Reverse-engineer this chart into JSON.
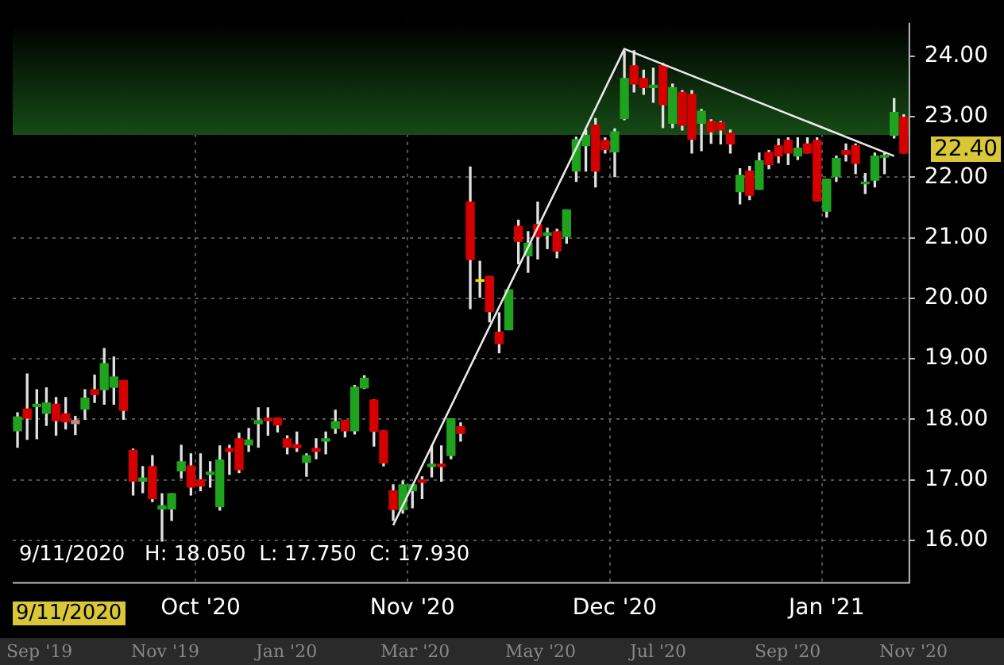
{
  "chart_data": {
    "type": "candlestick",
    "categories": [
      null,
      null,
      null,
      null,
      null,
      null,
      null,
      null,
      null,
      null,
      null,
      null,
      null,
      null,
      null,
      null,
      null,
      null,
      null,
      "Oct '20",
      null,
      null,
      null,
      null,
      null,
      null,
      null,
      null,
      null,
      null,
      null,
      null,
      null,
      null,
      null,
      null,
      null,
      null,
      null,
      null,
      null,
      "Nov '20",
      null,
      null,
      null,
      null,
      null,
      null,
      null,
      null,
      null,
      null,
      null,
      null,
      null,
      null,
      null,
      null,
      null,
      null,
      null,
      null,
      "Dec '20",
      null,
      null,
      null,
      null,
      null,
      null,
      null,
      null,
      null,
      null,
      null,
      null,
      null,
      null,
      null,
      null,
      null,
      null,
      null,
      null,
      null,
      "Jan '21",
      null,
      null,
      null,
      null,
      null,
      null,
      null,
      null
    ],
    "ohlc": [
      [
        17.81,
        18.11,
        17.54,
        18.04
      ],
      [
        18.17,
        18.75,
        17.67,
        18.02
      ],
      [
        18.21,
        18.49,
        17.68,
        18.25
      ],
      [
        18.1,
        18.52,
        17.9,
        18.27
      ],
      [
        18.25,
        18.36,
        17.74,
        17.98
      ],
      [
        18.09,
        18.36,
        17.84,
        17.96
      ],
      [
        17.98,
        18.05,
        17.75,
        17.93
      ],
      [
        18.17,
        18.49,
        18.0,
        18.35
      ],
      [
        18.49,
        18.73,
        18.28,
        18.41
      ],
      [
        18.49,
        19.17,
        18.25,
        18.92
      ],
      [
        18.53,
        19.03,
        18.25,
        18.7
      ],
      [
        18.64,
        18.64,
        18.0,
        18.15
      ],
      [
        17.49,
        17.51,
        16.75,
        16.98
      ],
      [
        16.98,
        17.22,
        16.79,
        17.03
      ],
      [
        17.22,
        17.4,
        16.64,
        16.69
      ],
      [
        16.52,
        16.77,
        15.99,
        16.57
      ],
      [
        16.52,
        16.77,
        16.33,
        16.77
      ],
      [
        17.15,
        17.57,
        17.03,
        17.3
      ],
      [
        17.23,
        17.43,
        16.75,
        16.88
      ],
      [
        17.0,
        17.43,
        16.82,
        16.9
      ],
      [
        17.09,
        17.3,
        16.88,
        17.13
      ],
      [
        16.56,
        17.56,
        16.5,
        17.33
      ],
      [
        17.52,
        17.57,
        17.09,
        17.47
      ],
      [
        17.68,
        17.77,
        17.12,
        17.17
      ],
      [
        17.58,
        17.85,
        17.47,
        17.66
      ],
      [
        17.93,
        18.19,
        17.54,
        17.98
      ],
      [
        18.02,
        18.19,
        17.74,
        17.98
      ],
      [
        18.02,
        18.02,
        17.79,
        17.91
      ],
      [
        17.68,
        17.73,
        17.43,
        17.54
      ],
      [
        17.58,
        17.79,
        17.47,
        17.53
      ],
      [
        17.29,
        17.43,
        17.06,
        17.4
      ],
      [
        17.52,
        17.68,
        17.35,
        17.47
      ],
      [
        17.64,
        17.79,
        17.43,
        17.68
      ],
      [
        17.85,
        18.15,
        17.77,
        17.96
      ],
      [
        17.98,
        17.98,
        17.71,
        17.81
      ],
      [
        17.81,
        18.56,
        17.76,
        18.53
      ],
      [
        18.52,
        18.72,
        18.51,
        18.68
      ],
      [
        18.32,
        18.32,
        17.56,
        17.8
      ],
      [
        17.81,
        17.81,
        17.23,
        17.28
      ],
      [
        16.82,
        16.92,
        16.33,
        16.51
      ],
      [
        16.51,
        16.98,
        16.45,
        16.92
      ],
      [
        16.82,
        16.92,
        16.54,
        16.92
      ],
      [
        17.0,
        17.05,
        16.69,
        16.96
      ],
      [
        17.22,
        17.56,
        17.05,
        17.26
      ],
      [
        17.26,
        17.56,
        16.98,
        17.22
      ],
      [
        17.4,
        18.01,
        17.35,
        18.01
      ],
      [
        17.88,
        17.94,
        17.64,
        17.77
      ],
      [
        21.59,
        22.17,
        19.83,
        20.64
      ],
      [
        20.3,
        20.61,
        20.02,
        20.28
      ],
      [
        20.36,
        20.36,
        19.61,
        19.78
      ],
      [
        19.44,
        19.76,
        19.1,
        19.25
      ],
      [
        19.48,
        20.14,
        19.48,
        20.14
      ],
      [
        21.19,
        21.29,
        20.57,
        20.94
      ],
      [
        20.7,
        21.1,
        20.43,
        20.91
      ],
      [
        21.22,
        21.59,
        20.65,
        21.02
      ],
      [
        21.04,
        21.16,
        20.82,
        21.08
      ],
      [
        21.1,
        21.14,
        20.67,
        20.78
      ],
      [
        21.02,
        21.46,
        20.91,
        21.46
      ],
      [
        22.1,
        22.66,
        21.93,
        22.62
      ],
      [
        22.52,
        22.78,
        22.1,
        22.69
      ],
      [
        22.86,
        22.97,
        21.84,
        22.1
      ],
      [
        22.61,
        22.65,
        22.4,
        22.46
      ],
      [
        22.42,
        22.8,
        22.01,
        22.75
      ],
      [
        22.97,
        24.08,
        22.95,
        23.63
      ],
      [
        23.84,
        24.09,
        23.41,
        23.54
      ],
      [
        23.63,
        23.77,
        23.37,
        23.48
      ],
      [
        23.48,
        23.8,
        23.24,
        23.52
      ],
      [
        23.84,
        23.88,
        22.82,
        23.2
      ],
      [
        22.89,
        23.54,
        22.82,
        23.48
      ],
      [
        23.4,
        23.43,
        22.78,
        22.86
      ],
      [
        23.37,
        23.43,
        22.4,
        22.63
      ],
      [
        22.89,
        23.12,
        22.44,
        23.09
      ],
      [
        22.92,
        22.95,
        22.56,
        22.75
      ],
      [
        22.9,
        22.92,
        22.55,
        22.78
      ],
      [
        22.73,
        22.78,
        22.4,
        22.55
      ],
      [
        21.76,
        22.14,
        21.56,
        22.03
      ],
      [
        22.1,
        22.18,
        21.63,
        21.7
      ],
      [
        21.8,
        22.4,
        21.8,
        22.27
      ],
      [
        22.41,
        22.44,
        22.14,
        22.21
      ],
      [
        22.52,
        22.63,
        22.24,
        22.35
      ],
      [
        22.61,
        22.65,
        22.21,
        22.4
      ],
      [
        22.35,
        22.65,
        22.29,
        22.48
      ],
      [
        22.55,
        22.65,
        22.4,
        22.4
      ],
      [
        22.61,
        22.65,
        21.61,
        21.61
      ],
      [
        21.44,
        21.97,
        21.34,
        21.97
      ],
      [
        22.01,
        22.35,
        21.93,
        22.31
      ],
      [
        22.44,
        22.55,
        22.27,
        22.38
      ],
      [
        22.52,
        22.55,
        22.06,
        22.23
      ],
      [
        21.89,
        22.06,
        21.73,
        21.92
      ],
      [
        21.95,
        22.4,
        21.84,
        22.35
      ],
      [
        22.33,
        22.4,
        22.06,
        22.36
      ],
      [
        22.69,
        23.3,
        22.65,
        23.07
      ],
      [
        22.99,
        23.03,
        22.4,
        22.4
      ]
    ],
    "colors": [
      "#1fa31f",
      "#d40000",
      "#1fa31f",
      "#1fa31f",
      "#d40000",
      "#d40000",
      "#c98080",
      "#1fa31f",
      "#d40000",
      "#1fa31f",
      "#1fa31f",
      "#d40000",
      "#d40000",
      "#1fa31f",
      "#d40000",
      "#1fa31f",
      "#1fa31f",
      "#1fa31f",
      "#d40000",
      "#d40000",
      "#1fa31f",
      "#1fa31f",
      "#d40000",
      "#d40000",
      "#1fa31f",
      "#1fa31f",
      "#d40000",
      "#d40000",
      "#d40000",
      "#d40000",
      "#1fa31f",
      "#d40000",
      "#1fa31f",
      "#1fa31f",
      "#d40000",
      "#1fa31f",
      "#1fa31f",
      "#d40000",
      "#d40000",
      "#d40000",
      "#1fa31f",
      "#1fa31f",
      "#d40000",
      "#1fa31f",
      "#d40000",
      "#1fa31f",
      "#d40000",
      "#d40000",
      "#e6e600",
      "#d40000",
      "#d40000",
      "#1fa31f",
      "#d40000",
      "#1fa31f",
      "#d40000",
      "#1fa31f",
      "#d40000",
      "#1fa31f",
      "#1fa31f",
      "#1fa31f",
      "#d40000",
      "#d40000",
      "#1fa31f",
      "#1fa31f",
      "#d40000",
      "#d40000",
      "#1fa31f",
      "#d40000",
      "#1fa31f",
      "#d40000",
      "#d40000",
      "#1fa31f",
      "#d40000",
      "#d40000",
      "#d40000",
      "#1fa31f",
      "#d40000",
      "#1fa31f",
      "#d40000",
      "#d40000",
      "#d40000",
      "#1fa31f",
      "#d40000",
      "#d40000",
      "#1fa31f",
      "#1fa31f",
      "#d40000",
      "#d40000",
      "#1fa31f",
      "#1fa31f",
      "#1fa31f",
      "#1fa31f",
      "#d40000"
    ],
    "series": [
      {
        "type": "line",
        "color": "#e8e8e8",
        "values": [
          null,
          null,
          null,
          null,
          null,
          null,
          null,
          null,
          null,
          null,
          null,
          null,
          null,
          null,
          null,
          null,
          null,
          null,
          null,
          null,
          null,
          null,
          null,
          null,
          null,
          null,
          null,
          null,
          null,
          null,
          null,
          null,
          null,
          null,
          null,
          null,
          null,
          null,
          null,
          16.25,
          null,
          null,
          null,
          null,
          null,
          null,
          null,
          null,
          null,
          null,
          null,
          null,
          null,
          null,
          null,
          null,
          null,
          null,
          null,
          null,
          null,
          null,
          null,
          24.12,
          null,
          null,
          null,
          null,
          null,
          null,
          null,
          null,
          null,
          null,
          null,
          null,
          null,
          null,
          null,
          null,
          null,
          null,
          null,
          null,
          null,
          null,
          null,
          null,
          null,
          null,
          null,
          22.35,
          null
        ]
      }
    ],
    "ylim": [
      15.3,
      24.55
    ],
    "yticks": [
      {
        "value": 16,
        "label": "16.00"
      },
      {
        "value": 17,
        "label": "17.00"
      },
      {
        "value": 18,
        "label": "18.00"
      },
      {
        "value": 19,
        "label": "19.00"
      },
      {
        "value": 20,
        "label": "20.00"
      },
      {
        "value": 21,
        "label": "21.00"
      },
      {
        "value": 22,
        "label": "22.00"
      },
      {
        "value": 23,
        "label": "23.00"
      },
      {
        "value": 24,
        "label": "24.00"
      }
    ],
    "bands": [
      {
        "axis": "y",
        "from": 22.7,
        "to": 24.55,
        "color": "#164a16"
      }
    ],
    "annotations": [
      "9/11/2020   H: 18.050  L: 17.750  C: 17.930",
      "9/11/2020",
      "22.40",
      "Sep '19",
      "Nov '19",
      "Jan '20",
      "Mar '20",
      "May '20",
      "Jul '20",
      "Sep '20",
      "Nov '20"
    ],
    "grid": true,
    "legend": false
  }
}
